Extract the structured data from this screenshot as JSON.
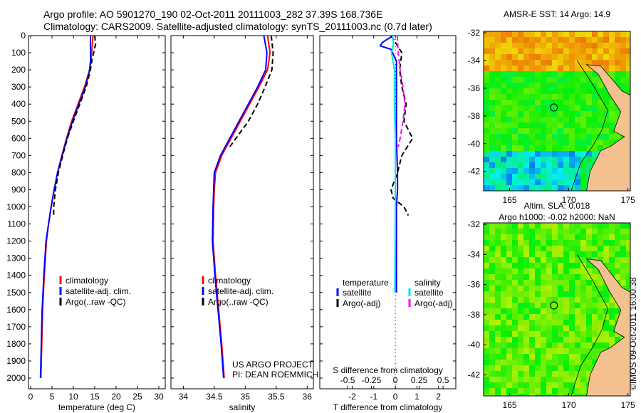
{
  "header": {
    "line1": "Argo profile: AO 5901270_190 02-Oct-2011 20111003_282 37.39S 168.736E",
    "line2": "Climatology: CARS2009. Satellite-adjusted climatology: synTS_20111003.nc (0.7d later)"
  },
  "credit": "©IMOS 09-Oct-2011 16:00:38",
  "project": [
    "US ARGO PROJECT",
    "PI: DEAN ROEMMICH"
  ],
  "colors": {
    "climatology": "#ff0000",
    "satellite": "#0000ff",
    "argo": "#000000",
    "sal_satellite": "#00e5ee",
    "sal_argo": "#ff00ff",
    "land": "#f4c090"
  },
  "chart_data": [
    {
      "type": "line",
      "xlabel": "temperature (deg C)",
      "ylabel": "",
      "xlim": [
        -0.5,
        31.5
      ],
      "ylim": [
        2080,
        0
      ],
      "xticks": [
        0,
        5,
        10,
        15,
        20,
        25,
        30
      ],
      "yticks": [
        0,
        100,
        200,
        300,
        400,
        500,
        600,
        700,
        800,
        900,
        1000,
        1100,
        1200,
        1300,
        1400,
        1500,
        1600,
        1700,
        1800,
        1900,
        2000
      ],
      "legend": [
        "climatology",
        "satellite-adj. clim.",
        "Argo(..raw -QC)"
      ],
      "series": [
        {
          "name": "climatology",
          "depth": [
            0,
            150,
            200,
            300,
            400,
            500,
            600,
            700,
            800,
            900,
            1000,
            1100,
            1200,
            1400,
            1600,
            1800,
            2000
          ],
          "values": [
            14.6,
            14.1,
            13.8,
            12.6,
            11.1,
            9.6,
            8.4,
            7.3,
            6.3,
            5.5,
            4.8,
            4.2,
            3.7,
            3.2,
            2.8,
            2.6,
            2.4
          ]
        },
        {
          "name": "satellite-adj. clim.",
          "depth": [
            0,
            150,
            200,
            300,
            400,
            500,
            600,
            700,
            800,
            900,
            1000,
            1100,
            1200,
            1400,
            1600,
            1800,
            2000
          ],
          "values": [
            14.0,
            14.0,
            13.8,
            12.8,
            11.3,
            9.8,
            8.5,
            7.4,
            6.3,
            5.5,
            4.8,
            4.2,
            3.6,
            3.1,
            2.7,
            2.5,
            2.3
          ]
        },
        {
          "name": "Argo(..raw -QC)",
          "depth": [
            0,
            50,
            150,
            200,
            300,
            400,
            500,
            600,
            700,
            800,
            900,
            1000,
            1050
          ],
          "values": [
            15.0,
            15.2,
            14.3,
            14.0,
            13.0,
            11.5,
            10.0,
            8.6,
            7.5,
            6.5,
            5.8,
            5.4,
            5.4
          ]
        }
      ]
    },
    {
      "type": "line",
      "xlabel": "salinity",
      "xlim": [
        33.8,
        36.1
      ],
      "ylim": [
        2080,
        0
      ],
      "xticks": [
        34,
        34.5,
        35,
        35.5,
        36
      ],
      "legend": [
        "climatology",
        "satellite-adj. clim.",
        "Argo(..raw -QC)"
      ],
      "series": [
        {
          "name": "climatology",
          "depth": [
            0,
            100,
            200,
            300,
            400,
            500,
            600,
            700,
            800,
            900,
            1000,
            1200,
            1400,
            1600,
            1800,
            2000
          ],
          "values": [
            35.36,
            35.4,
            35.36,
            35.22,
            35.07,
            34.92,
            34.77,
            34.62,
            34.52,
            34.5,
            34.49,
            34.48,
            34.52,
            34.57,
            34.62,
            34.66
          ]
        },
        {
          "name": "satellite-adj. clim.",
          "depth": [
            0,
            100,
            200,
            300,
            400,
            500,
            600,
            700,
            800,
            900,
            1000,
            1200,
            1400,
            1600,
            1800,
            2000
          ],
          "values": [
            35.3,
            35.35,
            35.33,
            35.2,
            35.05,
            34.9,
            34.75,
            34.6,
            34.5,
            34.49,
            34.48,
            34.47,
            34.51,
            34.56,
            34.61,
            34.65
          ]
        },
        {
          "name": "Argo(..raw -QC)",
          "depth": [
            0,
            100,
            200,
            300,
            400,
            500,
            600,
            650
          ],
          "values": [
            35.42,
            35.45,
            35.43,
            35.32,
            35.2,
            35.05,
            34.85,
            34.75
          ]
        }
      ]
    },
    {
      "type": "line",
      "xlabel": "T difference from climatology",
      "xlabel2": "S difference from climatology",
      "xlim": [
        -3.5,
        2.8
      ],
      "ylim": [
        2080,
        0
      ],
      "xticks": [
        -2,
        -1,
        0,
        1,
        2
      ],
      "xticks2": [
        -0.5,
        -0.25,
        0,
        0.25,
        0.5
      ],
      "xtick2_labels": [
        "-0.5",
        "-0.25",
        "0",
        "0.25",
        "0.5"
      ],
      "legend_headers": [
        "temperature",
        "salinity"
      ],
      "legend": [
        "satellite",
        "Argo(-adj)",
        "satellite",
        "Argo(-adj)"
      ],
      "series": [
        {
          "name": "temperature satellite",
          "axis": "T",
          "depth": [
            0,
            40,
            60,
            80,
            150,
            300,
            600,
            800,
            900,
            1000,
            1500
          ],
          "values": [
            -0.1,
            -0.6,
            -0.7,
            -0.2,
            0.05,
            0.05,
            0.05,
            0.1,
            0.1,
            0.05,
            0.05
          ]
        },
        {
          "name": "temperature Argo(-adj)",
          "axis": "T",
          "depth": [
            0,
            100,
            200,
            300,
            400,
            500,
            600,
            700,
            800,
            900,
            950,
            1000,
            1050
          ],
          "values": [
            -0.2,
            0.3,
            0.2,
            0.3,
            0.5,
            0.4,
            0.8,
            0.3,
            0.1,
            -0.2,
            -0.1,
            0.4,
            0.6
          ]
        },
        {
          "name": "salinity satellite",
          "axis": "S",
          "depth": [
            0,
            50,
            100,
            200,
            400,
            600,
            800,
            1000,
            1500
          ],
          "values": [
            -0.03,
            -0.02,
            -0.04,
            -0.01,
            -0.01,
            0,
            0,
            0,
            -0.005
          ]
        },
        {
          "name": "salinity Argo(-adj)",
          "axis": "S",
          "depth": [
            0,
            100,
            200,
            300,
            400,
            500,
            600,
            650
          ],
          "values": [
            0.02,
            0.03,
            0.05,
            0.08,
            0.1,
            0.08,
            0.05,
            0.03
          ]
        }
      ]
    }
  ],
  "maps": [
    {
      "title": "AMSR-E SST: 14 Argo: 14.9",
      "lat_ticks": [
        "-32",
        "-34",
        "-36",
        "-38",
        "-40",
        "-42"
      ],
      "lon_ticks": [
        "165",
        "170",
        "175"
      ],
      "argo_lon": 168.74,
      "argo_lat": -37.39
    },
    {
      "title_lines": [
        "Altim. SLA: 0.018",
        "Argo h1000: -0.02 h2000: NaN"
      ],
      "lat_ticks": [
        "-32",
        "-34",
        "-36",
        "-38",
        "-40",
        "-42"
      ],
      "lon_ticks": [
        "165",
        "170",
        "175"
      ],
      "argo_lon": 168.74,
      "argo_lat": -37.39
    }
  ]
}
